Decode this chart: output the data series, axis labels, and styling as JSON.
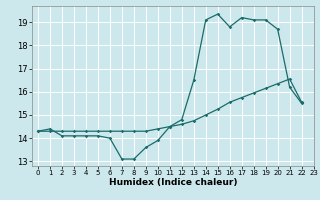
{
  "title": "",
  "xlabel": "Humidex (Indice chaleur)",
  "background_color": "#cce8ec",
  "grid_color": "#ffffff",
  "line_color": "#1a6b6b",
  "xlim": [
    -0.5,
    23
  ],
  "ylim": [
    12.8,
    19.7
  ],
  "yticks": [
    13,
    14,
    15,
    16,
    17,
    18,
    19
  ],
  "xticks": [
    0,
    1,
    2,
    3,
    4,
    5,
    6,
    7,
    8,
    9,
    10,
    11,
    12,
    13,
    14,
    15,
    16,
    17,
    18,
    19,
    20,
    21,
    22,
    23
  ],
  "series1_x": [
    0,
    1,
    2,
    3,
    4,
    5,
    6,
    7,
    8,
    9,
    10,
    11,
    12,
    13,
    14,
    15,
    16,
    17,
    18,
    19,
    20,
    21,
    22
  ],
  "series1_y": [
    14.3,
    14.4,
    14.1,
    14.1,
    14.1,
    14.1,
    14.0,
    13.1,
    13.1,
    13.6,
    13.9,
    14.5,
    14.8,
    16.5,
    19.1,
    19.35,
    18.8,
    19.2,
    19.1,
    19.1,
    18.7,
    16.2,
    15.5
  ],
  "series2_x": [
    0,
    1,
    2,
    3,
    4,
    5,
    6,
    7,
    8,
    9,
    10,
    11,
    12,
    13,
    14,
    15,
    16,
    17,
    18,
    19,
    20,
    21,
    22
  ],
  "series2_y": [
    14.3,
    14.3,
    14.3,
    14.3,
    14.3,
    14.3,
    14.3,
    14.3,
    14.3,
    14.3,
    14.4,
    14.5,
    14.6,
    14.75,
    15.0,
    15.25,
    15.55,
    15.75,
    15.95,
    16.15,
    16.35,
    16.55,
    15.55
  ]
}
